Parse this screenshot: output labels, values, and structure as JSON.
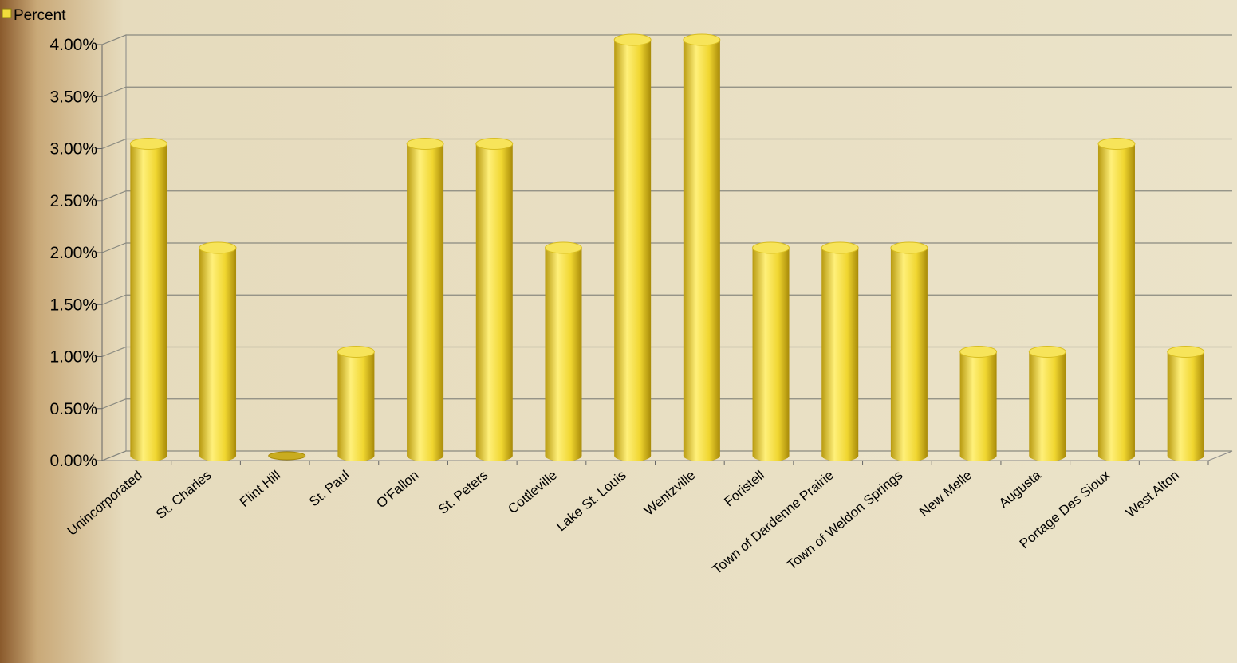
{
  "chart_data": {
    "type": "bar",
    "categories": [
      "Unincorporated",
      "St. Charles",
      "Flint Hill",
      "St. Paul",
      "O'Fallon",
      "St. Peters",
      "Cottleville",
      "Lake St. Louis",
      "Wentzville",
      "Foristell",
      "Town of Dardenne Prairie",
      "Town of Weldon Springs",
      "New Melle",
      "Augusta",
      "Portage Des Sioux",
      "West Alton"
    ],
    "series": [
      {
        "name": "Percent",
        "color": "#f2dc3c",
        "values": [
          3,
          2,
          0,
          1,
          3,
          3,
          2,
          4,
          4,
          2,
          2,
          2,
          1,
          1,
          3,
          1
        ]
      }
    ],
    "ylim": [
      0,
      4
    ],
    "yticks": [
      {
        "value": 0,
        "label": "0.00%"
      },
      {
        "value": 0.5,
        "label": "0.50%"
      },
      {
        "value": 1,
        "label": "1.00%"
      },
      {
        "value": 1.5,
        "label": "1.50%"
      },
      {
        "value": 2,
        "label": "2.00%"
      },
      {
        "value": 2.5,
        "label": "2.50%"
      },
      {
        "value": 3,
        "label": "3.00%"
      },
      {
        "value": 3.5,
        "label": "3.50%"
      },
      {
        "value": 4,
        "label": "4.00%"
      }
    ],
    "grid": true,
    "legend": "top-left"
  }
}
